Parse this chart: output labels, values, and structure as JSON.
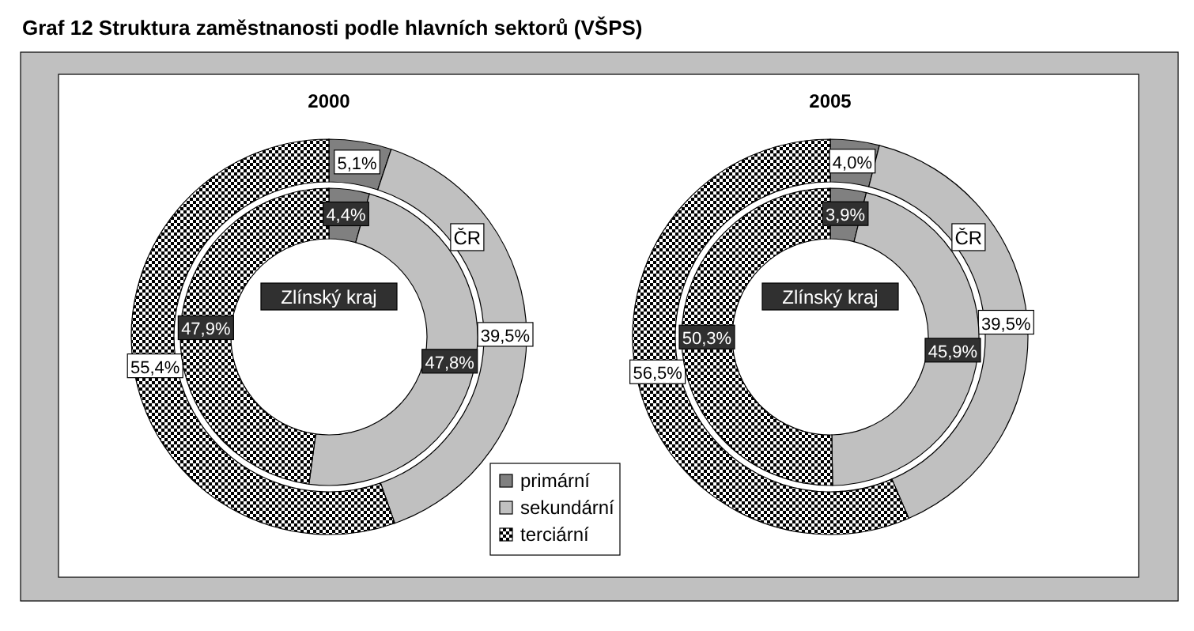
{
  "chart_data": [
    {
      "type": "donut",
      "title": "2000",
      "annotations": [
        "Graf 12 Struktura zaměstnanosti podle hlavních sektorů (VŠPS)"
      ],
      "categories": [
        "primární",
        "sekundární",
        "terciární"
      ],
      "colors": [
        "#808080",
        "#c0c0c0",
        "#000000"
      ],
      "legend": "bottom",
      "series": [
        {
          "name": "ČR",
          "values": [
            5.1,
            39.5,
            55.4
          ],
          "value_labels": [
            "5,1%",
            "39,5%",
            "55,4%"
          ]
        },
        {
          "name": "Zlínský kraj",
          "values": [
            4.4,
            47.8,
            47.9
          ],
          "value_labels": [
            "4,4%",
            "47,8%",
            "47,9%"
          ]
        }
      ]
    },
    {
      "type": "donut",
      "title": "2005",
      "colors": [
        "#808080",
        "#c0c0c0",
        "#000000"
      ],
      "series": [
        {
          "name": "ČR",
          "values": [
            4.0,
            39.5,
            56.5
          ],
          "value_labels": [
            "4,0%",
            "39,5%",
            "56,5%"
          ]
        },
        {
          "name": "Zlínský kraj",
          "values": [
            3.9,
            45.9,
            50.3
          ],
          "value_labels": [
            "3,9%",
            "45,9%",
            "50,3%"
          ]
        }
      ]
    }
  ]
}
